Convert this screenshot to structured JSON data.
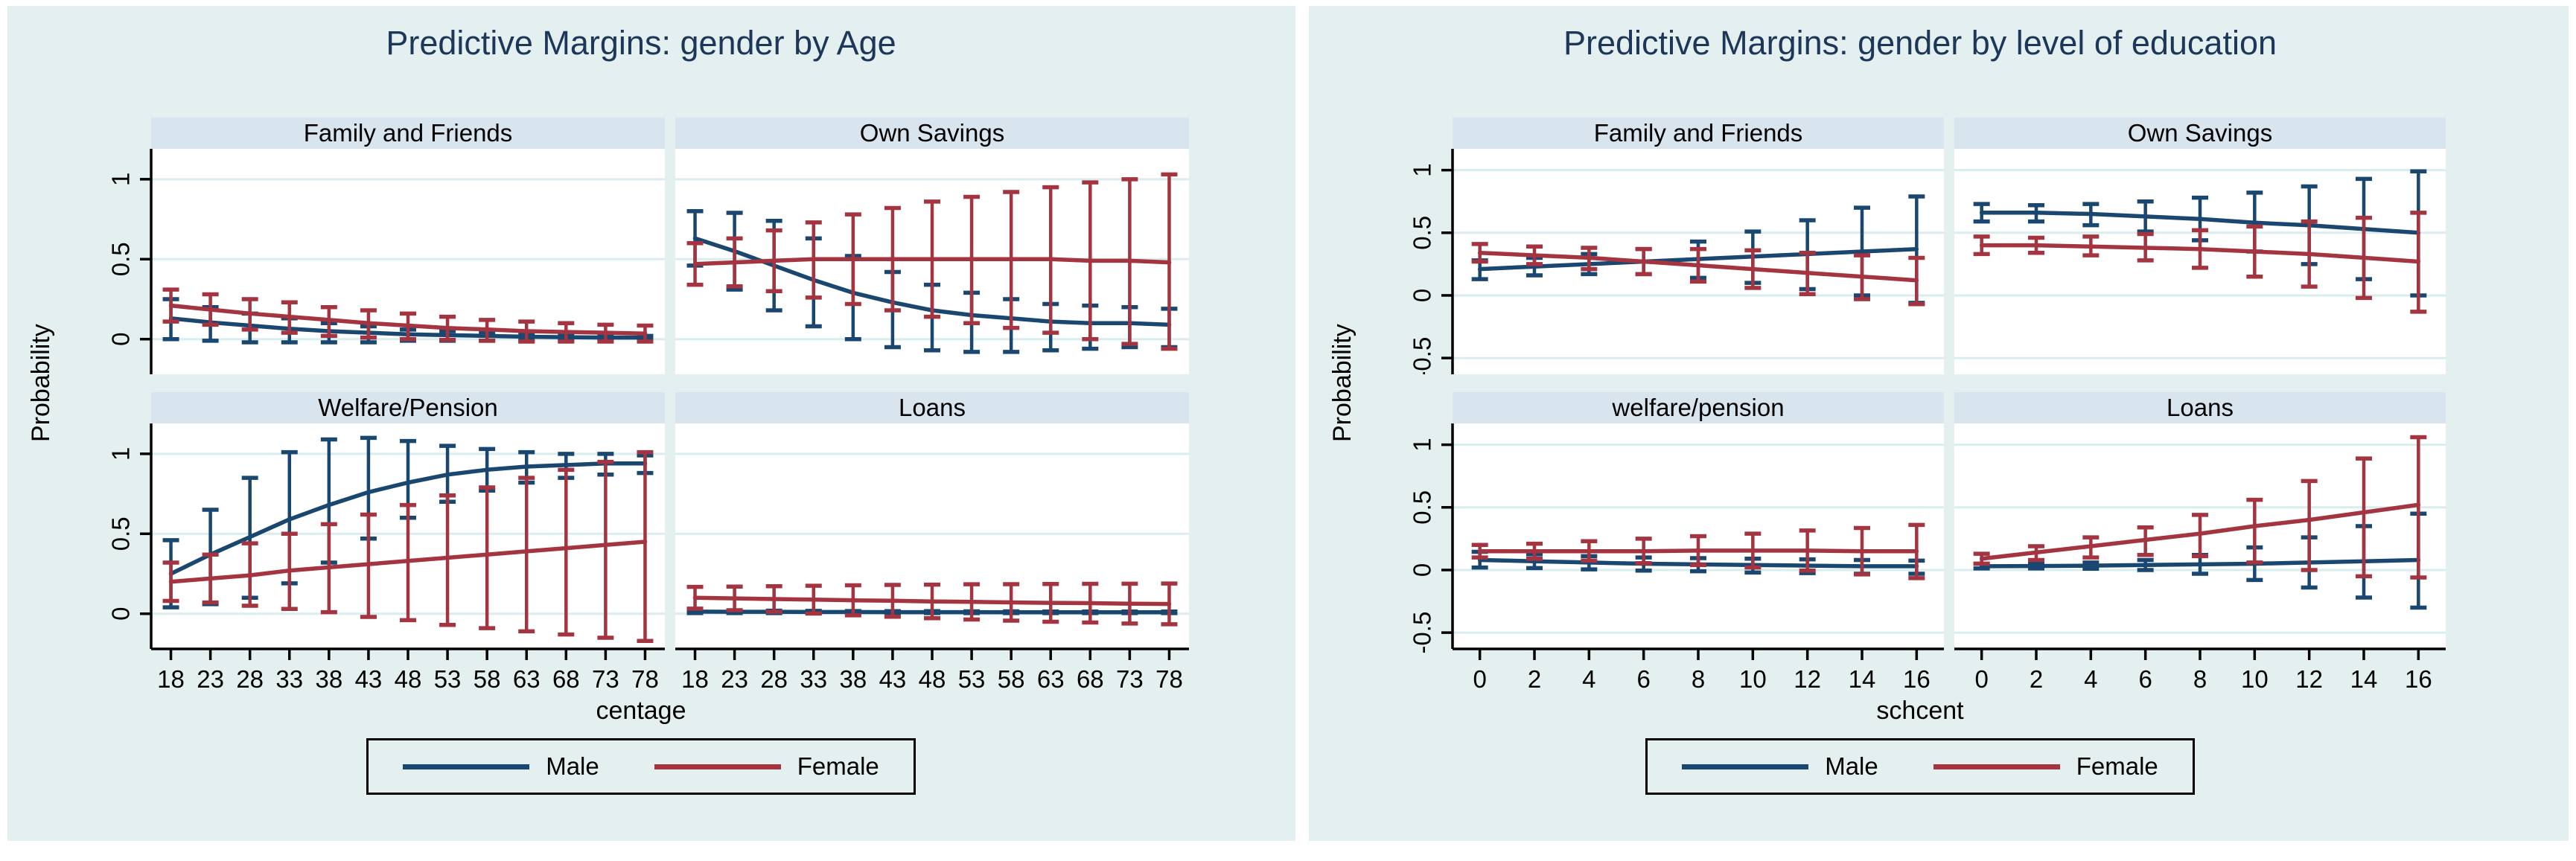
{
  "colors": {
    "figure_bg": "#e4f0ef",
    "panel_header_bg": "#d8e4ee",
    "plot_bg": "#ffffff",
    "gridline": "#d9edee",
    "axis": "#000000",
    "title_text": "#1c3759",
    "male": "#1a476f",
    "female": "#a43440"
  },
  "legend": {
    "items": [
      {
        "label": "Male",
        "color": "#1a476f"
      },
      {
        "label": "Female",
        "color": "#a43440"
      }
    ]
  },
  "chart_data": [
    {
      "type": "line",
      "title": "Predictive Margins: gender by Age",
      "xlabel": "centage",
      "ylabel": "Probability",
      "x": [
        18,
        23,
        28,
        33,
        38,
        43,
        48,
        53,
        58,
        63,
        68,
        73,
        78
      ],
      "ylim": [
        -0.22,
        1.19
      ],
      "yticks": [
        0,
        0.5,
        1
      ],
      "ytick_labels": [
        "0",
        "0.5",
        "1"
      ],
      "grid": true,
      "legend_position": "bottom",
      "panels": [
        {
          "title": "Family and Friends",
          "series": [
            {
              "name": "Male",
              "color": "#1a476f",
              "values": [
                0.13,
                0.105,
                0.085,
                0.065,
                0.05,
                0.04,
                0.03,
                0.025,
                0.02,
                0.015,
                0.012,
                0.01,
                0.01
              ],
              "ci_upper": [
                0.25,
                0.2,
                0.16,
                0.13,
                0.1,
                0.08,
                0.06,
                0.05,
                0.04,
                0.03,
                0.03,
                0.02,
                0.02
              ],
              "ci_lower": [
                0.0,
                -0.01,
                -0.02,
                -0.02,
                -0.02,
                -0.02,
                -0.01,
                -0.01,
                -0.01,
                -0.005,
                -0.005,
                -0.005,
                -0.005
              ]
            },
            {
              "name": "Female",
              "color": "#a43440",
              "values": [
                0.21,
                0.185,
                0.16,
                0.14,
                0.12,
                0.1,
                0.085,
                0.07,
                0.06,
                0.05,
                0.045,
                0.04,
                0.035
              ],
              "ci_upper": [
                0.31,
                0.28,
                0.25,
                0.23,
                0.2,
                0.18,
                0.16,
                0.14,
                0.12,
                0.11,
                0.1,
                0.09,
                0.085
              ],
              "ci_lower": [
                0.11,
                0.09,
                0.06,
                0.04,
                0.02,
                0.01,
                0.0,
                -0.005,
                -0.01,
                -0.015,
                -0.015,
                -0.015,
                -0.015
              ]
            }
          ]
        },
        {
          "title": "Own Savings",
          "series": [
            {
              "name": "Male",
              "color": "#1a476f",
              "values": [
                0.63,
                0.55,
                0.46,
                0.37,
                0.29,
                0.23,
                0.18,
                0.15,
                0.13,
                0.11,
                0.1,
                0.1,
                0.09
              ],
              "ci_upper": [
                0.8,
                0.79,
                0.74,
                0.63,
                0.52,
                0.42,
                0.34,
                0.29,
                0.25,
                0.22,
                0.21,
                0.2,
                0.19
              ],
              "ci_lower": [
                0.46,
                0.31,
                0.18,
                0.08,
                0.0,
                -0.05,
                -0.07,
                -0.08,
                -0.08,
                -0.07,
                -0.06,
                -0.05,
                -0.05
              ]
            },
            {
              "name": "Female",
              "color": "#a43440",
              "values": [
                0.47,
                0.48,
                0.49,
                0.5,
                0.5,
                0.5,
                0.5,
                0.5,
                0.5,
                0.5,
                0.49,
                0.49,
                0.48
              ],
              "ci_upper": [
                0.6,
                0.63,
                0.68,
                0.73,
                0.78,
                0.82,
                0.86,
                0.89,
                0.92,
                0.95,
                0.98,
                1.0,
                1.03
              ],
              "ci_lower": [
                0.34,
                0.33,
                0.3,
                0.26,
                0.22,
                0.18,
                0.14,
                0.1,
                0.07,
                0.04,
                0.0,
                -0.03,
                -0.06
              ]
            }
          ]
        },
        {
          "title": "Welfare/Pension",
          "series": [
            {
              "name": "Male",
              "color": "#1a476f",
              "values": [
                0.25,
                0.37,
                0.48,
                0.59,
                0.68,
                0.76,
                0.82,
                0.87,
                0.9,
                0.92,
                0.93,
                0.94,
                0.94
              ],
              "ci_upper": [
                0.46,
                0.65,
                0.85,
                1.01,
                1.09,
                1.1,
                1.08,
                1.05,
                1.03,
                1.01,
                1.0,
                1.0,
                0.99
              ],
              "ci_lower": [
                0.04,
                0.06,
                0.1,
                0.19,
                0.32,
                0.47,
                0.6,
                0.7,
                0.77,
                0.82,
                0.85,
                0.87,
                0.88
              ]
            },
            {
              "name": "Female",
              "color": "#a43440",
              "values": [
                0.2,
                0.22,
                0.24,
                0.27,
                0.29,
                0.31,
                0.33,
                0.35,
                0.37,
                0.39,
                0.41,
                0.43,
                0.45
              ],
              "ci_upper": [
                0.32,
                0.37,
                0.44,
                0.5,
                0.56,
                0.62,
                0.68,
                0.74,
                0.79,
                0.85,
                0.9,
                0.95,
                1.01
              ],
              "ci_lower": [
                0.08,
                0.07,
                0.05,
                0.03,
                0.01,
                -0.02,
                -0.04,
                -0.07,
                -0.09,
                -0.11,
                -0.13,
                -0.15,
                -0.17
              ]
            }
          ]
        },
        {
          "title": "Loans",
          "series": [
            {
              "name": "Male",
              "color": "#1a476f",
              "values": [
                0.013,
                0.012,
                0.012,
                0.011,
                0.011,
                0.01,
                0.01,
                0.01,
                0.009,
                0.009,
                0.009,
                0.009,
                0.009
              ],
              "ci_upper": [
                0.022,
                0.02,
                0.019,
                0.018,
                0.017,
                0.016,
                0.016,
                0.015,
                0.015,
                0.014,
                0.014,
                0.014,
                0.014
              ],
              "ci_lower": [
                0.004,
                0.004,
                0.004,
                0.004,
                0.004,
                0.004,
                0.004,
                0.004,
                0.004,
                0.004,
                0.004,
                0.004,
                0.004
              ]
            },
            {
              "name": "Female",
              "color": "#a43440",
              "values": [
                0.1,
                0.096,
                0.092,
                0.088,
                0.084,
                0.081,
                0.077,
                0.074,
                0.071,
                0.068,
                0.066,
                0.063,
                0.061
              ],
              "ci_upper": [
                0.168,
                0.17,
                0.172,
                0.175,
                0.178,
                0.18,
                0.182,
                0.184,
                0.185,
                0.186,
                0.187,
                0.188,
                0.189
              ],
              "ci_lower": [
                0.032,
                0.022,
                0.012,
                0.001,
                -0.01,
                -0.019,
                -0.028,
                -0.036,
                -0.043,
                -0.05,
                -0.055,
                -0.061,
                -0.066
              ]
            }
          ]
        }
      ]
    },
    {
      "type": "line",
      "title": "Predictive Margins: gender by level of education",
      "xlabel": "schcent",
      "ylabel": "Probability",
      "x": [
        0,
        2,
        4,
        6,
        8,
        10,
        12,
        14,
        16
      ],
      "ylim": [
        -0.63,
        1.17
      ],
      "yticks": [
        -0.5,
        0,
        0.5,
        1
      ],
      "ytick_labels": [
        "-0.5",
        "0",
        "0.5",
        "1"
      ],
      "grid": true,
      "legend_position": "bottom",
      "panels": [
        {
          "title": "Family and Friends",
          "series": [
            {
              "name": "Male",
              "color": "#1a476f",
              "values": [
                0.21,
                0.23,
                0.25,
                0.27,
                0.29,
                0.31,
                0.33,
                0.35,
                0.37
              ],
              "ci_upper": [
                0.28,
                0.3,
                0.33,
                0.37,
                0.43,
                0.51,
                0.6,
                0.7,
                0.79
              ],
              "ci_lower": [
                0.13,
                0.16,
                0.17,
                0.17,
                0.14,
                0.1,
                0.05,
                0.0,
                -0.06
              ]
            },
            {
              "name": "Female",
              "color": "#a43440",
              "values": [
                0.34,
                0.32,
                0.3,
                0.27,
                0.24,
                0.21,
                0.18,
                0.15,
                0.12
              ],
              "ci_upper": [
                0.41,
                0.39,
                0.38,
                0.37,
                0.37,
                0.36,
                0.34,
                0.32,
                0.3
              ],
              "ci_lower": [
                0.27,
                0.25,
                0.21,
                0.17,
                0.11,
                0.06,
                0.01,
                -0.03,
                -0.07
              ]
            }
          ]
        },
        {
          "title": "Own Savings",
          "series": [
            {
              "name": "Male",
              "color": "#1a476f",
              "values": [
                0.66,
                0.66,
                0.65,
                0.63,
                0.61,
                0.58,
                0.56,
                0.53,
                0.5
              ],
              "ci_upper": [
                0.73,
                0.72,
                0.73,
                0.75,
                0.78,
                0.82,
                0.87,
                0.93,
                0.99
              ],
              "ci_lower": [
                0.59,
                0.59,
                0.56,
                0.51,
                0.44,
                0.35,
                0.25,
                0.13,
                0.0
              ]
            },
            {
              "name": "Female",
              "color": "#a43440",
              "values": [
                0.4,
                0.4,
                0.39,
                0.38,
                0.37,
                0.35,
                0.33,
                0.3,
                0.27
              ],
              "ci_upper": [
                0.47,
                0.46,
                0.47,
                0.49,
                0.52,
                0.55,
                0.59,
                0.62,
                0.66
              ],
              "ci_lower": [
                0.33,
                0.34,
                0.32,
                0.28,
                0.22,
                0.15,
                0.07,
                -0.02,
                -0.13
              ]
            }
          ]
        },
        {
          "title": "welfare/pension",
          "series": [
            {
              "name": "Male",
              "color": "#1a476f",
              "values": [
                0.08,
                0.07,
                0.06,
                0.05,
                0.045,
                0.04,
                0.035,
                0.03,
                0.03
              ],
              "ci_upper": [
                0.145,
                0.125,
                0.11,
                0.1,
                0.095,
                0.09,
                0.085,
                0.08,
                0.075
              ],
              "ci_lower": [
                0.02,
                0.015,
                0.005,
                -0.005,
                -0.01,
                -0.02,
                -0.025,
                -0.03,
                -0.03
              ]
            },
            {
              "name": "Female",
              "color": "#a43440",
              "values": [
                0.15,
                0.15,
                0.15,
                0.15,
                0.155,
                0.155,
                0.155,
                0.15,
                0.15
              ],
              "ci_upper": [
                0.2,
                0.21,
                0.23,
                0.25,
                0.27,
                0.29,
                0.315,
                0.335,
                0.36
              ],
              "ci_lower": [
                0.1,
                0.09,
                0.075,
                0.055,
                0.04,
                0.02,
                -0.005,
                -0.035,
                -0.065
              ]
            }
          ]
        },
        {
          "title": "Loans",
          "series": [
            {
              "name": "Male",
              "color": "#1a476f",
              "values": [
                0.03,
                0.032,
                0.035,
                0.04,
                0.045,
                0.05,
                0.06,
                0.07,
                0.08
              ],
              "ci_upper": [
                0.05,
                0.05,
                0.06,
                0.08,
                0.12,
                0.18,
                0.26,
                0.35,
                0.45
              ],
              "ci_lower": [
                0.012,
                0.012,
                0.01,
                0.0,
                -0.03,
                -0.08,
                -0.14,
                -0.22,
                -0.3
              ]
            },
            {
              "name": "Female",
              "color": "#a43440",
              "values": [
                0.09,
                0.14,
                0.19,
                0.24,
                0.29,
                0.35,
                0.4,
                0.46,
                0.52
              ],
              "ci_upper": [
                0.13,
                0.19,
                0.26,
                0.34,
                0.44,
                0.56,
                0.71,
                0.89,
                1.06
              ],
              "ci_lower": [
                0.05,
                0.08,
                0.1,
                0.12,
                0.11,
                0.06,
                0.0,
                -0.05,
                -0.06
              ]
            }
          ]
        }
      ]
    }
  ]
}
